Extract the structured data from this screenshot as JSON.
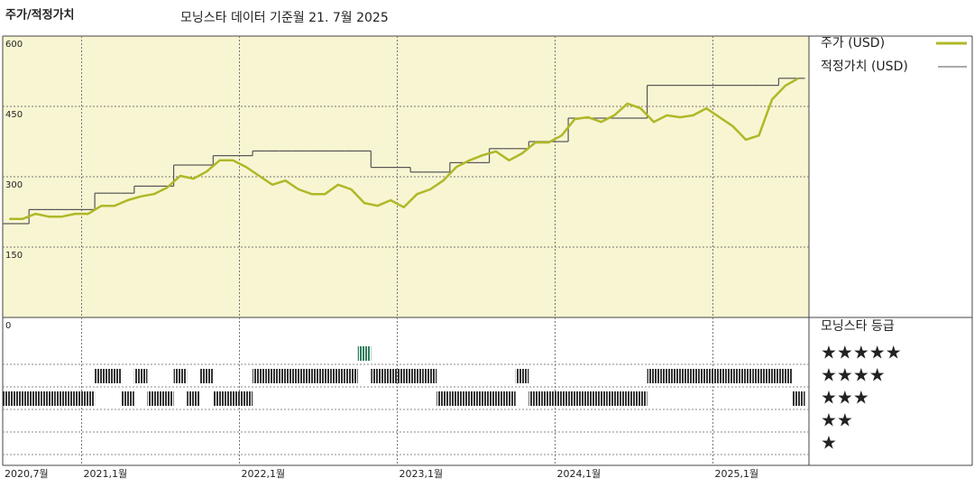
{
  "chart_data": {
    "type": "line",
    "title": "주가/적정가치",
    "subtitle": "모닝스타 데이터 기준월 21. 7월 2025",
    "x": [
      "2020-07",
      "2020-08",
      "2020-09",
      "2020-10",
      "2020-11",
      "2020-12",
      "2021-01",
      "2021-02",
      "2021-03",
      "2021-04",
      "2021-05",
      "2021-06",
      "2021-07",
      "2021-08",
      "2021-09",
      "2021-10",
      "2021-11",
      "2021-12",
      "2022-01",
      "2022-02",
      "2022-03",
      "2022-04",
      "2022-05",
      "2022-06",
      "2022-07",
      "2022-08",
      "2022-09",
      "2022-10",
      "2022-11",
      "2022-12",
      "2023-01",
      "2023-02",
      "2023-03",
      "2023-04",
      "2023-05",
      "2023-06",
      "2023-07",
      "2023-08",
      "2023-09",
      "2023-10",
      "2023-11",
      "2023-12",
      "2024-01",
      "2024-02",
      "2024-03",
      "2024-04",
      "2024-05",
      "2024-06",
      "2024-07",
      "2024-08",
      "2024-09",
      "2024-10",
      "2024-11",
      "2024-12",
      "2025-01",
      "2025-02",
      "2025-03",
      "2025-04",
      "2025-05",
      "2025-06",
      "2025-07"
    ],
    "series": [
      {
        "name": "주가 (USD)",
        "color": "#afb827",
        "values": [
          210,
          210,
          221,
          215,
          215,
          221,
          221,
          238,
          238,
          250,
          258,
          263,
          277,
          302,
          296,
          311,
          335,
          335,
          321,
          302,
          283,
          292,
          273,
          263,
          263,
          283,
          273,
          244,
          238,
          250,
          235,
          263,
          273,
          292,
          321,
          335,
          346,
          354,
          335,
          350,
          373,
          373,
          388,
          423,
          427,
          417,
          431,
          456,
          446,
          417,
          431,
          427,
          431,
          446,
          427,
          408,
          379,
          388,
          465,
          494,
          510
        ]
      },
      {
        "name": "적정가치 (USD)",
        "color": "#555555",
        "values": [
          200,
          200,
          230,
          230,
          230,
          230,
          230,
          265,
          265,
          265,
          280,
          280,
          280,
          325,
          325,
          325,
          345,
          345,
          345,
          355,
          355,
          355,
          355,
          355,
          355,
          355,
          355,
          355,
          320,
          320,
          320,
          310,
          310,
          310,
          330,
          330,
          330,
          360,
          360,
          360,
          375,
          375,
          375,
          425,
          425,
          425,
          425,
          425,
          425,
          495,
          495,
          495,
          495,
          495,
          495,
          495,
          495,
          495,
          495,
          510,
          510
        ]
      }
    ],
    "ylim": [
      0,
      600
    ],
    "yticks": [
      0,
      150,
      300,
      450,
      600
    ],
    "grid": true,
    "xticks": [
      {
        "value": "2020-07",
        "label": "2020,7월"
      },
      {
        "value": "2021-01",
        "label": "2021,1월"
      },
      {
        "value": "2022-01",
        "label": "2022,1월"
      },
      {
        "value": "2023-01",
        "label": "2023,1월"
      },
      {
        "value": "2024-01",
        "label": "2024,1월"
      },
      {
        "value": "2025-01",
        "label": "2025,1월"
      }
    ],
    "ratings": {
      "title": "모닝스타 등급",
      "labels": [
        "★★★★★",
        "★★★★",
        "★★★",
        "★★",
        "★"
      ],
      "color": "#333333",
      "top_color": "#2e7d5b",
      "values": [
        3,
        3,
        3,
        3,
        3,
        3,
        3,
        4,
        4,
        3,
        4,
        3,
        3,
        4,
        3,
        4,
        3,
        3,
        3,
        4,
        4,
        4,
        4,
        4,
        4,
        4,
        4,
        5,
        4,
        4,
        4,
        4,
        4,
        3,
        3,
        3,
        3,
        3,
        3,
        4,
        3,
        3,
        3,
        3,
        3,
        3,
        3,
        3,
        3,
        4,
        4,
        4,
        4,
        4,
        4,
        4,
        4,
        4,
        4,
        4,
        3
      ]
    }
  }
}
